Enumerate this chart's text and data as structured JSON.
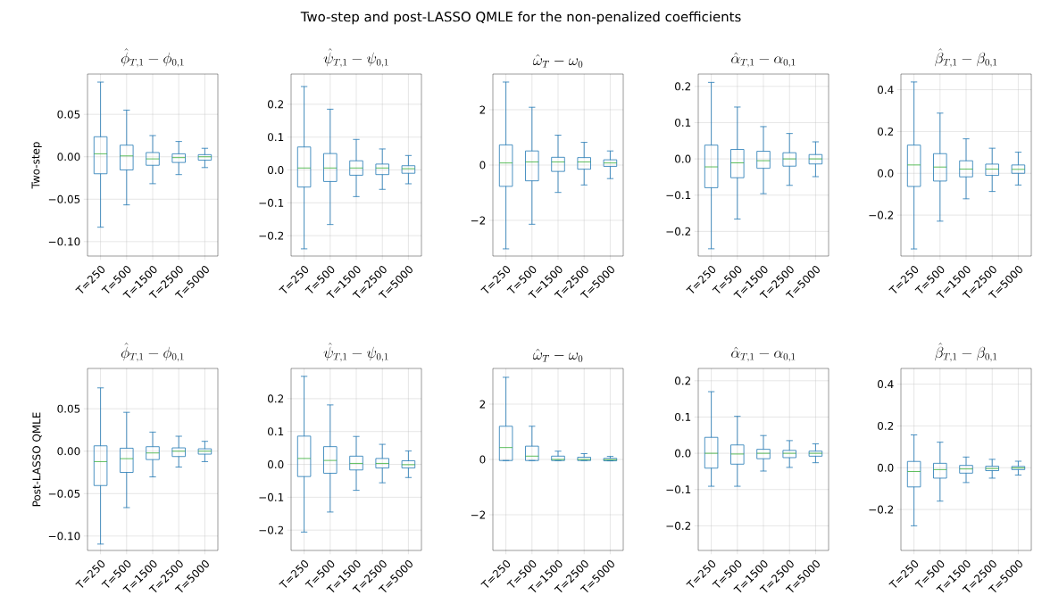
{
  "chart_data": [
    {
      "type": "box",
      "title": "\\hat{\\phi}_{T,1} - \\phi_{0,1}",
      "ylabel": "Two-step",
      "annotations": [
        "Two-step and post-LASSO QMLE for the non-penalized coefficients"
      ],
      "categories": [
        "T=250",
        "T=500",
        "T=1500",
        "T=2500",
        "T=5000"
      ],
      "color": "#1f77b4",
      "grid": true,
      "ylim": [
        -0.117,
        0.0975
      ],
      "yticks": [
        {
          "value": -0.1,
          "label": "−0.10"
        },
        {
          "value": -0.05,
          "label": "−0.05"
        },
        {
          "value": 0,
          "label": "0.00"
        },
        {
          "value": 0.05,
          "label": "0.05"
        }
      ],
      "boxes": [
        {
          "low": -0.083,
          "q1": -0.02,
          "median": 0.0035,
          "q3": 0.0236,
          "high": 0.088
        },
        {
          "low": -0.0567,
          "q1": -0.0155,
          "median": 0.001,
          "q3": 0.0137,
          "high": 0.055
        },
        {
          "low": -0.0317,
          "q1": -0.01,
          "median": -0.0025,
          "q3": 0.005,
          "high": 0.025
        },
        {
          "low": -0.021,
          "q1": -0.0067,
          "median": -0.001,
          "q3": 0.0035,
          "high": 0.018
        },
        {
          "low": -0.0127,
          "q1": -0.004,
          "median": 0,
          "q3": 0.0025,
          "high": 0.01
        }
      ]
    },
    {
      "type": "box",
      "title": "\\hat{\\psi}_{T,1} - \\psi_{0,1}",
      "categories": [
        "T=250",
        "T=500",
        "T=1500",
        "T=2500",
        "T=5000"
      ],
      "color": "#1f77b4",
      "grid": true,
      "ylim": [
        -0.262,
        0.292
      ],
      "yticks": [
        {
          "value": -0.2,
          "label": "−0.2"
        },
        {
          "value": -0.1,
          "label": "−0.1"
        },
        {
          "value": 0,
          "label": "0.0"
        },
        {
          "value": 0.1,
          "label": "0.1"
        },
        {
          "value": 0.2,
          "label": "0.2"
        }
      ],
      "boxes": [
        {
          "low": -0.24,
          "q1": -0.052,
          "median": 0.006,
          "q3": 0.07,
          "high": 0.254
        },
        {
          "low": -0.166,
          "q1": -0.035,
          "median": 0.006,
          "q3": 0.05,
          "high": 0.185
        },
        {
          "low": -0.081,
          "q1": -0.016,
          "median": 0.006,
          "q3": 0.028,
          "high": 0.093
        },
        {
          "low": -0.059,
          "q1": -0.014,
          "median": 0.006,
          "q3": 0.018,
          "high": 0.064
        },
        {
          "low": -0.042,
          "q1": -0.01,
          "median": 0.004,
          "q3": 0.013,
          "high": 0.044
        }
      ]
    },
    {
      "type": "box",
      "title": "\\hat{\\omega}_{T} - \\omega_{0}",
      "categories": [
        "T=250",
        "T=500",
        "T=1500",
        "T=2500",
        "T=5000"
      ],
      "color": "#1f77b4",
      "grid": true,
      "ylim": [
        -3.29,
        3.29
      ],
      "yticks": [
        {
          "value": -2,
          "label": "−2"
        },
        {
          "value": 0,
          "label": "0"
        },
        {
          "value": 2,
          "label": "2"
        }
      ],
      "boxes": [
        {
          "low": -3.03,
          "q1": -0.77,
          "median": 0.075,
          "q3": 0.73,
          "high": 3.0
        },
        {
          "low": -2.14,
          "q1": -0.57,
          "median": 0.11,
          "q3": 0.51,
          "high": 2.09
        },
        {
          "low": -0.99,
          "q1": -0.23,
          "median": 0.11,
          "q3": 0.28,
          "high": 1.08
        },
        {
          "low": -0.72,
          "q1": -0.15,
          "median": 0.11,
          "q3": 0.27,
          "high": 0.82
        },
        {
          "low": -0.49,
          "q1": -0.05,
          "median": 0.075,
          "q3": 0.19,
          "high": 0.51
        }
      ]
    },
    {
      "type": "box",
      "title": "\\hat{\\alpha}_{T,1} - \\alpha_{0,1}",
      "categories": [
        "T=250",
        "T=500",
        "T=1500",
        "T=2500",
        "T=5000"
      ],
      "color": "#1f77b4",
      "grid": true,
      "ylim": [
        -0.268,
        0.234
      ],
      "yticks": [
        {
          "value": -0.2,
          "label": "−0.2"
        },
        {
          "value": -0.1,
          "label": "−0.1"
        },
        {
          "value": 0,
          "label": "0.0"
        },
        {
          "value": 0.1,
          "label": "0.1"
        },
        {
          "value": 0.2,
          "label": "0.2"
        }
      ],
      "boxes": [
        {
          "low": -0.248,
          "q1": -0.0795,
          "median": -0.022,
          "q3": 0.038,
          "high": 0.211
        },
        {
          "low": -0.166,
          "q1": -0.052,
          "median": -0.011,
          "q3": 0.026,
          "high": 0.143
        },
        {
          "low": -0.096,
          "q1": -0.026,
          "median": -0.005,
          "q3": 0.021,
          "high": 0.089
        },
        {
          "low": -0.073,
          "q1": -0.02,
          "median": 0.0,
          "q3": 0.017,
          "high": 0.07
        },
        {
          "low": -0.049,
          "q1": -0.014,
          "median": 0.0,
          "q3": 0.012,
          "high": 0.047
        }
      ]
    },
    {
      "type": "box",
      "title": "\\hat{\\beta}_{T,1} - \\beta_{0,1}",
      "categories": [
        "T=250",
        "T=500",
        "T=1500",
        "T=2500",
        "T=5000"
      ],
      "color": "#1f77b4",
      "grid": true,
      "ylim": [
        -0.396,
        0.475
      ],
      "yticks": [
        {
          "value": -0.2,
          "label": "−0.2"
        },
        {
          "value": 0,
          "label": "0.0"
        },
        {
          "value": 0.2,
          "label": "0.2"
        },
        {
          "value": 0.4,
          "label": "0.4"
        }
      ],
      "boxes": [
        {
          "low": -0.362,
          "q1": -0.063,
          "median": 0.04,
          "q3": 0.135,
          "high": 0.437
        },
        {
          "low": -0.229,
          "q1": -0.037,
          "median": 0.03,
          "q3": 0.094,
          "high": 0.288
        },
        {
          "low": -0.122,
          "q1": -0.017,
          "median": 0.02,
          "q3": 0.06,
          "high": 0.165
        },
        {
          "low": -0.087,
          "q1": -0.01,
          "median": 0.02,
          "q3": 0.044,
          "high": 0.12
        },
        {
          "low": -0.056,
          "q1": 0.0,
          "median": 0.019,
          "q3": 0.04,
          "high": 0.101
        }
      ]
    },
    {
      "type": "box",
      "title": "\\hat{\\phi}_{T,1} - \\phi_{0,1}",
      "ylabel": "Post-LASSO QMLE",
      "categories": [
        "T=250",
        "T=500",
        "T=1500",
        "T=2500",
        "T=5000"
      ],
      "color": "#1f77b4",
      "grid": true,
      "ylim": [
        -0.117,
        0.0975
      ],
      "yticks": [
        {
          "value": -0.1,
          "label": "−0.10"
        },
        {
          "value": -0.05,
          "label": "−0.05"
        },
        {
          "value": 0,
          "label": "0.00"
        },
        {
          "value": 0.05,
          "label": "0.05"
        }
      ],
      "boxes": [
        {
          "low": -0.1095,
          "q1": -0.0405,
          "median": -0.0123,
          "q3": 0.0063,
          "high": 0.0746
        },
        {
          "low": -0.0665,
          "q1": -0.025,
          "median": -0.0088,
          "q3": 0.0035,
          "high": 0.0458
        },
        {
          "low": -0.0303,
          "q1": -0.0099,
          "median": -0.0021,
          "q3": 0.0053,
          "high": 0.0225
        },
        {
          "low": -0.0187,
          "q1": -0.0063,
          "median": 0.0,
          "q3": 0.0039,
          "high": 0.0176
        },
        {
          "low": -0.0123,
          "q1": -0.0035,
          "median": 0.0,
          "q3": 0.0028,
          "high": 0.0116
        }
      ]
    },
    {
      "type": "box",
      "title": "\\hat{\\psi}_{T,1} - \\psi_{0,1}",
      "categories": [
        "T=250",
        "T=500",
        "T=1500",
        "T=2500",
        "T=5000"
      ],
      "color": "#1f77b4",
      "grid": true,
      "ylim": [
        -0.262,
        0.292
      ],
      "yticks": [
        {
          "value": -0.2,
          "label": "−0.2"
        },
        {
          "value": -0.1,
          "label": "−0.1"
        },
        {
          "value": 0,
          "label": "0.0"
        },
        {
          "value": 0.1,
          "label": "0.1"
        },
        {
          "value": 0.2,
          "label": "0.2"
        }
      ],
      "boxes": [
        {
          "low": -0.206,
          "q1": -0.037,
          "median": 0.018,
          "q3": 0.086,
          "high": 0.268
        },
        {
          "low": -0.145,
          "q1": -0.027,
          "median": 0.012,
          "q3": 0.054,
          "high": 0.181
        },
        {
          "low": -0.079,
          "q1": -0.017,
          "median": 0.003,
          "q3": 0.025,
          "high": 0.085
        },
        {
          "low": -0.056,
          "q1": -0.011,
          "median": 0.003,
          "q3": 0.018,
          "high": 0.061
        },
        {
          "low": -0.04,
          "q1": -0.011,
          "median": -0.001,
          "q3": 0.011,
          "high": 0.041
        }
      ]
    },
    {
      "type": "box",
      "title": "\\hat{\\omega}_{T} - \\omega_{0}",
      "categories": [
        "T=250",
        "T=500",
        "T=1500",
        "T=2500",
        "T=5000"
      ],
      "color": "#1f77b4",
      "grid": true,
      "ylim": [
        -3.29,
        3.29
      ],
      "yticks": [
        {
          "value": -2,
          "label": "−2"
        },
        {
          "value": 0,
          "label": "0"
        },
        {
          "value": 2,
          "label": "2"
        }
      ],
      "boxes": [
        {
          "low": -0.04,
          "q1": -0.04,
          "median": 0.43,
          "q3": 1.2,
          "high": 2.97
        },
        {
          "low": -0.04,
          "q1": -0.04,
          "median": 0.12,
          "q3": 0.48,
          "high": 1.2
        },
        {
          "low": -0.04,
          "q1": -0.04,
          "median": 0.0,
          "q3": 0.12,
          "high": 0.3
        },
        {
          "low": -0.04,
          "q1": -0.04,
          "median": 0.0,
          "q3": 0.08,
          "high": 0.21
        },
        {
          "low": -0.05,
          "q1": -0.05,
          "median": -0.01,
          "q3": 0.04,
          "high": 0.11
        }
      ]
    },
    {
      "type": "box",
      "title": "\\hat{\\alpha}_{T,1} - \\alpha_{0,1}",
      "categories": [
        "T=250",
        "T=500",
        "T=1500",
        "T=2500",
        "T=5000"
      ],
      "color": "#1f77b4",
      "grid": true,
      "ylim": [
        -0.268,
        0.234
      ],
      "yticks": [
        {
          "value": -0.2,
          "label": "−0.2"
        },
        {
          "value": -0.1,
          "label": "−0.1"
        },
        {
          "value": 0,
          "label": "0.0"
        },
        {
          "value": 0.1,
          "label": "0.1"
        },
        {
          "value": 0.2,
          "label": "0.2"
        }
      ],
      "boxes": [
        {
          "low": -0.091,
          "q1": -0.041,
          "median": 0.0,
          "q3": 0.044,
          "high": 0.17
        },
        {
          "low": -0.091,
          "q1": -0.03,
          "median": -0.002,
          "q3": 0.023,
          "high": 0.102
        },
        {
          "low": -0.049,
          "q1": -0.015,
          "median": 0.0,
          "q3": 0.011,
          "high": 0.049
        },
        {
          "low": -0.039,
          "q1": -0.012,
          "median": 0.0,
          "q3": 0.008,
          "high": 0.035
        },
        {
          "low": -0.026,
          "q1": -0.008,
          "median": 0.0,
          "q3": 0.006,
          "high": 0.026
        }
      ]
    },
    {
      "type": "box",
      "title": "\\hat{\\beta}_{T,1} - \\beta_{0,1}",
      "categories": [
        "T=250",
        "T=500",
        "T=1500",
        "T=2500",
        "T=5000"
      ],
      "color": "#1f77b4",
      "grid": true,
      "ylim": [
        -0.396,
        0.475
      ],
      "yticks": [
        {
          "value": -0.2,
          "label": "−0.2"
        },
        {
          "value": 0,
          "label": "0.0"
        },
        {
          "value": 0.2,
          "label": "0.2"
        },
        {
          "value": 0.4,
          "label": "0.4"
        }
      ],
      "boxes": [
        {
          "low": -0.278,
          "q1": -0.092,
          "median": -0.018,
          "q3": 0.03,
          "high": 0.157
        },
        {
          "low": -0.16,
          "q1": -0.05,
          "median": -0.009,
          "q3": 0.021,
          "high": 0.122
        },
        {
          "low": -0.071,
          "q1": -0.026,
          "median": -0.006,
          "q3": 0.011,
          "high": 0.051
        },
        {
          "low": -0.05,
          "q1": -0.014,
          "median": -0.004,
          "q3": 0.007,
          "high": 0.04
        },
        {
          "low": -0.035,
          "q1": -0.009,
          "median": -0.001,
          "q3": 0.006,
          "high": 0.031
        }
      ]
    }
  ]
}
